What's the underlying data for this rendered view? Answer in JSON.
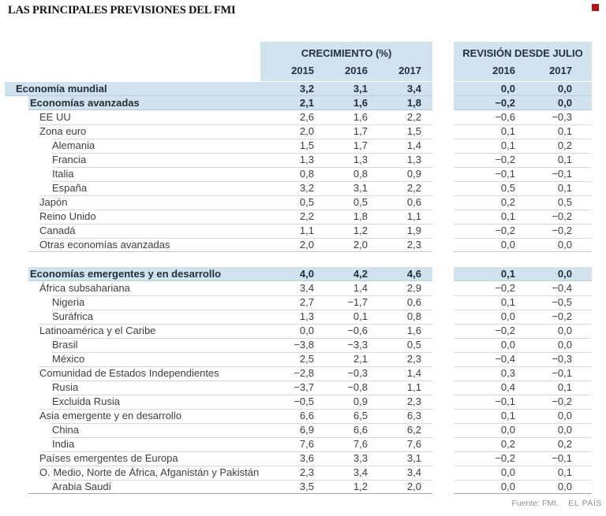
{
  "title": "LAS PRINCIPALES PREVISIONES DEL FMI",
  "colors": {
    "highlight_blue": "#cfe2ed",
    "highlight_border": "#b6cddb",
    "row_line": "#dadada",
    "dark_line": "#9aa4ac",
    "emphasis_text": "#22303a",
    "body_text": "#3e3e3e",
    "brand_red": "#ad1519",
    "footer_gray": "#909090"
  },
  "header": {
    "growth_title": "CRECIMIENTO (%)",
    "growth_years": [
      "2015",
      "2016",
      "2017"
    ],
    "revision_title": "REVISIÓN DESDE JULIO",
    "revision_years": [
      "2016",
      "2017"
    ]
  },
  "chart_data": {
    "type": "table",
    "title": "LAS PRINCIPALES PREVISIONES DEL FMI",
    "column_groups": [
      {
        "label": "CRECIMIENTO (%)",
        "columns": [
          "2015",
          "2016",
          "2017"
        ]
      },
      {
        "label": "REVISIÓN DESDE JULIO",
        "columns": [
          "2016",
          "2017"
        ]
      }
    ],
    "rows": [
      {
        "label": "Economía mundial",
        "level": 0,
        "emphasis": true,
        "gap_before": false,
        "values": [
          "3,2",
          "3,1",
          "3,4",
          "0,0",
          "0,0"
        ]
      },
      {
        "label": "Economías avanzadas",
        "level": 1,
        "emphasis": true,
        "gap_before": false,
        "values": [
          "2,1",
          "1,6",
          "1,8",
          "−0,2",
          "0,0"
        ]
      },
      {
        "label": "EE UU",
        "level": 2,
        "emphasis": false,
        "gap_before": false,
        "values": [
          "2,6",
          "1,6",
          "2,2",
          "−0,6",
          "−0,3"
        ]
      },
      {
        "label": "Zona euro",
        "level": 2,
        "emphasis": false,
        "gap_before": false,
        "values": [
          "2,0",
          "1,7",
          "1,5",
          "0,1",
          "0,1"
        ]
      },
      {
        "label": "Alemania",
        "level": 3,
        "emphasis": false,
        "gap_before": false,
        "values": [
          "1,5",
          "1,7",
          "1,4",
          "0,1",
          "0,2"
        ]
      },
      {
        "label": "Francia",
        "level": 3,
        "emphasis": false,
        "gap_before": false,
        "values": [
          "1,3",
          "1,3",
          "1,3",
          "−0,2",
          "0,1"
        ]
      },
      {
        "label": "Italia",
        "level": 3,
        "emphasis": false,
        "gap_before": false,
        "values": [
          "0,8",
          "0,8",
          "0,9",
          "−0,1",
          "−0,1"
        ]
      },
      {
        "label": "España",
        "level": 3,
        "emphasis": false,
        "gap_before": false,
        "values": [
          "3,2",
          "3,1",
          "2,2",
          "0,5",
          "0,1"
        ]
      },
      {
        "label": "Japón",
        "level": 2,
        "emphasis": false,
        "gap_before": false,
        "values": [
          "0,5",
          "0,5",
          "0,6",
          "0,2",
          "0,5"
        ]
      },
      {
        "label": "Reino Unido",
        "level": 2,
        "emphasis": false,
        "gap_before": false,
        "values": [
          "2,2",
          "1,8",
          "1,1",
          "0,1",
          "−0,2"
        ]
      },
      {
        "label": "Canadá",
        "level": 2,
        "emphasis": false,
        "gap_before": false,
        "values": [
          "1,1",
          "1,2",
          "1,9",
          "−0,2",
          "−0,2"
        ]
      },
      {
        "label": "Otras economías avanzadas",
        "level": 2,
        "emphasis": false,
        "gap_before": false,
        "values": [
          "2,0",
          "2,0",
          "2,3",
          "0,0",
          "0,0"
        ]
      },
      {
        "label": "Economías emergentes y en desarrollo",
        "level": 1,
        "emphasis": true,
        "gap_before": true,
        "values": [
          "4,0",
          "4,2",
          "4,6",
          "0,1",
          "0,0"
        ]
      },
      {
        "label": "África subsahariana",
        "level": 2,
        "emphasis": false,
        "gap_before": false,
        "values": [
          "3,4",
          "1,4",
          "2,9",
          "−0,2",
          "−0,4"
        ]
      },
      {
        "label": "Nigeria",
        "level": 3,
        "emphasis": false,
        "gap_before": false,
        "values": [
          "2,7",
          "−1,7",
          "0,6",
          "0,1",
          "−0,5"
        ]
      },
      {
        "label": "Suráfrica",
        "level": 3,
        "emphasis": false,
        "gap_before": false,
        "values": [
          "1,3",
          "0,1",
          "0,8",
          "0,0",
          "−0,2"
        ]
      },
      {
        "label": "Latinoamérica y el Caribe",
        "level": 2,
        "emphasis": false,
        "gap_before": false,
        "values": [
          "0,0",
          "−0,6",
          "1,6",
          "−0,2",
          "0,0"
        ]
      },
      {
        "label": "Brasil",
        "level": 3,
        "emphasis": false,
        "gap_before": false,
        "values": [
          "−3,8",
          "−3,3",
          "0,5",
          "0,0",
          "0,0"
        ]
      },
      {
        "label": "México",
        "level": 3,
        "emphasis": false,
        "gap_before": false,
        "values": [
          "2,5",
          "2,1",
          "2,3",
          "−0,4",
          "−0,3"
        ]
      },
      {
        "label": "Comunidad de Estados Independientes",
        "level": 2,
        "emphasis": false,
        "gap_before": false,
        "values": [
          "−2,8",
          "−0,3",
          "1,4",
          "0,3",
          "−0,1"
        ]
      },
      {
        "label": "Rusia",
        "level": 3,
        "emphasis": false,
        "gap_before": false,
        "values": [
          "−3,7",
          "−0,8",
          "1,1",
          "0,4",
          "0,1"
        ]
      },
      {
        "label": "Excluida Rusia",
        "level": 3,
        "emphasis": false,
        "gap_before": false,
        "values": [
          "−0,5",
          "0,9",
          "2,3",
          "−0,1",
          "−0,2"
        ]
      },
      {
        "label": "Asia emergente y en desarrollo",
        "level": 2,
        "emphasis": false,
        "gap_before": false,
        "values": [
          "6,6",
          "6,5",
          "6,3",
          "0,1",
          "0,0"
        ]
      },
      {
        "label": "China",
        "level": 3,
        "emphasis": false,
        "gap_before": false,
        "values": [
          "6,9",
          "6,6",
          "6,2",
          "0,0",
          "0,0"
        ]
      },
      {
        "label": "India",
        "level": 3,
        "emphasis": false,
        "gap_before": false,
        "values": [
          "7,6",
          "7,6",
          "7,6",
          "0,2",
          "0,2"
        ]
      },
      {
        "label": "Países emergentes de Europa",
        "level": 2,
        "emphasis": false,
        "gap_before": false,
        "values": [
          "3,6",
          "3,3",
          "3,1",
          "−0,2",
          "−0,1"
        ]
      },
      {
        "label": "O. Medio, Norte de África, Afganistán y Pakistán",
        "level": 2,
        "emphasis": false,
        "gap_before": false,
        "values": [
          "2,3",
          "3,4",
          "3,4",
          "0,0",
          "0,1"
        ]
      },
      {
        "label": "Arabia Saudí",
        "level": 3,
        "emphasis": false,
        "gap_before": false,
        "values": [
          "3,5",
          "1,2",
          "2,0",
          "0,0",
          "0,0"
        ]
      }
    ]
  },
  "footer": {
    "source": "Fuente: FMI.",
    "brand": "EL PAÍS"
  }
}
